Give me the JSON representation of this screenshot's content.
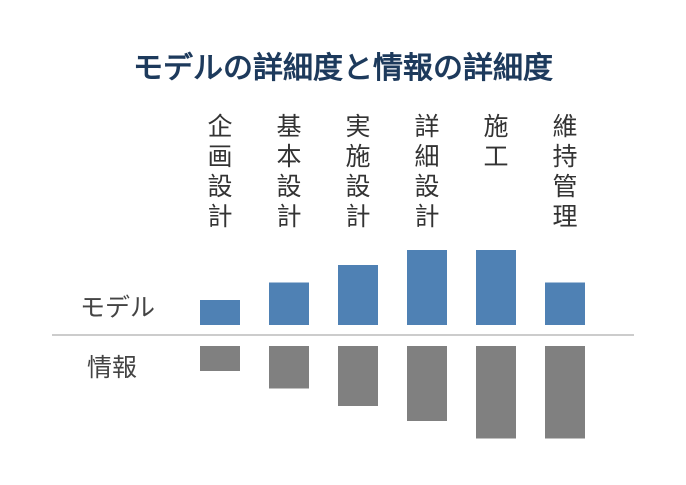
{
  "chart_data": {
    "type": "bar",
    "title": "モデルの詳細度と情報の詳細度",
    "categories": [
      "企画設計",
      "基本設計",
      "実施設計",
      "詳細設計",
      "施工",
      "維持管理"
    ],
    "series": [
      {
        "name": "モデル",
        "values": [
          1.0,
          1.7,
          2.4,
          3.0,
          3.0,
          1.7
        ]
      },
      {
        "name": "情報",
        "values": [
          1.0,
          1.7,
          2.4,
          3.0,
          3.7,
          3.7
        ]
      }
    ],
    "colors": {
      "model": "#4f81b4",
      "info": "#808080",
      "baseline": "#cccccc"
    },
    "grid": false
  }
}
